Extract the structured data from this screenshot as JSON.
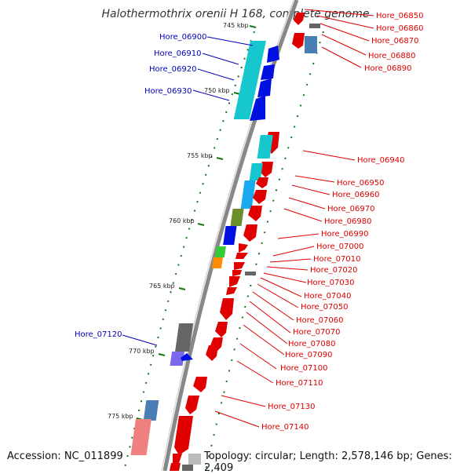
{
  "title": "Halothermothrix orenii H 168, complete genome",
  "footer": {
    "accession": "Accession: NC_011899",
    "summary": "Topology: circular; Length: 2,578,146 bp; Genes: 2,409"
  },
  "colors": {
    "right_label": "#dd0000",
    "left_label": "#0000bb",
    "backbone": "#888888",
    "tick": "#117711"
  },
  "ticks": [
    {
      "label": "745 kbp"
    },
    {
      "label": "750 kbp"
    },
    {
      "label": "755 kbp"
    },
    {
      "label": "760 kbp"
    },
    {
      "label": "765 kbp"
    },
    {
      "label": "770 kbp"
    },
    {
      "label": "775 kbp"
    }
  ],
  "left_genes": [
    {
      "name": "Hore_06900"
    },
    {
      "name": "Hore_06910"
    },
    {
      "name": "Hore_06920"
    },
    {
      "name": "Hore_06930"
    },
    {
      "name": "Hore_07120"
    }
  ],
  "right_genes": [
    {
      "name": "Hore_06850"
    },
    {
      "name": "Hore_06860"
    },
    {
      "name": "Hore_06870"
    },
    {
      "name": "Hore_06880"
    },
    {
      "name": "Hore_06890"
    },
    {
      "name": "Hore_06940"
    },
    {
      "name": "Hore_06950"
    },
    {
      "name": "Hore_06960"
    },
    {
      "name": "Hore_06970"
    },
    {
      "name": "Hore_06980"
    },
    {
      "name": "Hore_06990"
    },
    {
      "name": "Hore_07000"
    },
    {
      "name": "Hore_07010"
    },
    {
      "name": "Hore_07020"
    },
    {
      "name": "Hore_07030"
    },
    {
      "name": "Hore_07040"
    },
    {
      "name": "Hore_07050"
    },
    {
      "name": "Hore_07060"
    },
    {
      "name": "Hore_07070"
    },
    {
      "name": "Hore_07080"
    },
    {
      "name": "Hore_07090"
    },
    {
      "name": "Hore_07100"
    },
    {
      "name": "Hore_07110"
    },
    {
      "name": "Hore_07130"
    },
    {
      "name": "Hore_07140"
    }
  ]
}
